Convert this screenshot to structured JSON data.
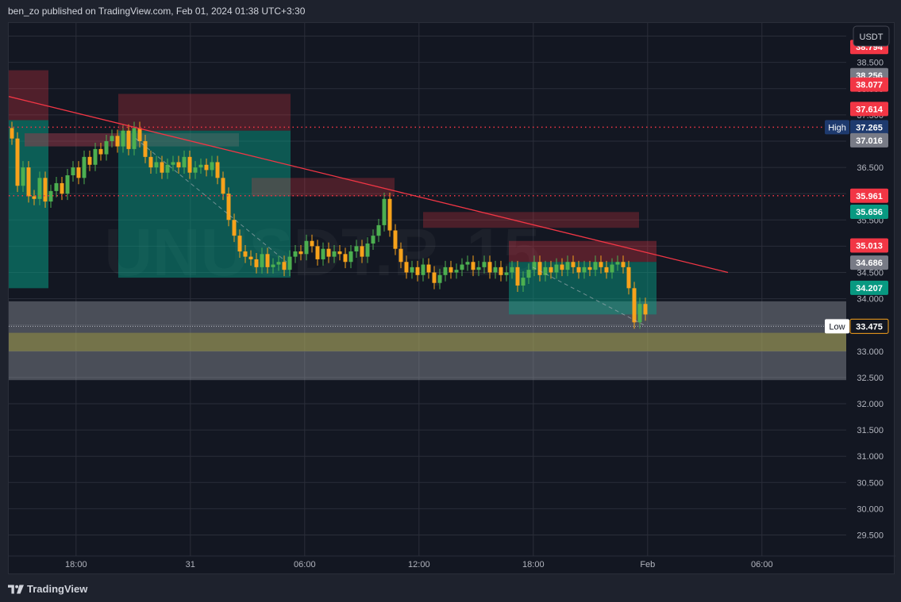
{
  "header": {
    "published_text": "ben_zo published on TradingView.com, Feb 01, 2024 01:38 UTC+3:30"
  },
  "footer": {
    "brand": "TradingView",
    "logo_icon": "tradingview-logo-icon"
  },
  "watermark": "UNUSDT.P, 15",
  "chart_data": {
    "type": "candlestick",
    "currency_label": "USDT",
    "y_ticks": [
      29.5,
      30.0,
      30.5,
      31.0,
      31.5,
      32.0,
      32.5,
      33.0,
      33.5,
      34.0,
      34.5,
      35.0,
      35.5,
      36.0,
      36.5,
      37.0,
      37.5,
      38.0,
      38.5,
      39.0
    ],
    "ylim": [
      29.1,
      39.25
    ],
    "x_ticks": [
      {
        "label": "18:00",
        "t": 2
      },
      {
        "label": "31",
        "t": 12
      },
      {
        "label": "06:00",
        "t": 22
      },
      {
        "label": "12:00",
        "t": 32
      },
      {
        "label": "18:00",
        "t": 42
      },
      {
        "label": "Feb",
        "t": 52
      },
      {
        "label": "06:00",
        "t": 62
      }
    ],
    "price_labels": [
      {
        "value": "38.794",
        "color": "#f23645"
      },
      {
        "value": "38.256",
        "color": "#787b86"
      },
      {
        "value": "38.077",
        "color": "#f23645"
      },
      {
        "value": "37.614",
        "color": "#f23645"
      },
      {
        "value": "37.265",
        "color": "#1e3a6e"
      },
      {
        "value": "37.016",
        "color": "#787b86"
      },
      {
        "value": "35.961",
        "color": "#f23645"
      },
      {
        "value": "35.656",
        "color": "#089981"
      },
      {
        "value": "35.013",
        "color": "#f23645"
      },
      {
        "value": "34.686",
        "color": "#787b86"
      },
      {
        "value": "34.207",
        "color": "#089981"
      },
      {
        "value": "33.475",
        "color": "#131722"
      }
    ],
    "markers": [
      {
        "label": "High",
        "value": "37.265"
      },
      {
        "label": "Low",
        "value": "33.475"
      }
    ],
    "colors": {
      "up": "#4caf50",
      "down": "#f7a21b",
      "trendline": "#f23645",
      "dotted_level": "#f23645",
      "grid": "#2a2e39",
      "background": "#131722"
    },
    "closes": [
      37.05,
      36.15,
      36.5,
      35.95,
      35.9,
      36.3,
      35.85,
      36.05,
      36.2,
      36.0,
      36.35,
      36.5,
      36.3,
      36.7,
      36.55,
      36.85,
      36.75,
      37.0,
      37.1,
      36.9,
      37.2,
      36.85,
      37.25,
      37.0,
      36.7,
      36.5,
      36.6,
      36.4,
      36.55,
      36.6,
      36.5,
      36.7,
      36.4,
      36.5,
      36.55,
      36.45,
      36.6,
      36.3,
      36.0,
      35.5,
      35.2,
      34.9,
      34.8,
      34.75,
      34.6,
      34.85,
      34.6,
      34.65,
      34.7,
      34.55,
      34.8,
      34.9,
      34.85,
      35.1,
      35.0,
      34.75,
      34.95,
      34.8,
      34.9,
      34.85,
      34.7,
      34.9,
      35.0,
      34.8,
      35.05,
      35.2,
      35.4,
      35.9,
      35.3,
      34.95,
      34.7,
      34.5,
      34.6,
      34.45,
      34.65,
      34.5,
      34.3,
      34.45,
      34.6,
      34.5,
      34.55,
      34.65,
      34.7,
      34.55,
      34.6,
      34.7,
      34.5,
      34.6,
      34.45,
      34.5,
      34.6,
      34.25,
      34.4,
      34.55,
      34.7,
      34.45,
      34.6,
      34.5,
      34.65,
      34.55,
      34.7,
      34.6,
      34.5,
      34.6,
      34.55,
      34.7,
      34.6,
      34.5,
      34.65,
      34.7,
      34.6,
      34.2,
      33.55,
      33.9,
      33.7
    ]
  }
}
